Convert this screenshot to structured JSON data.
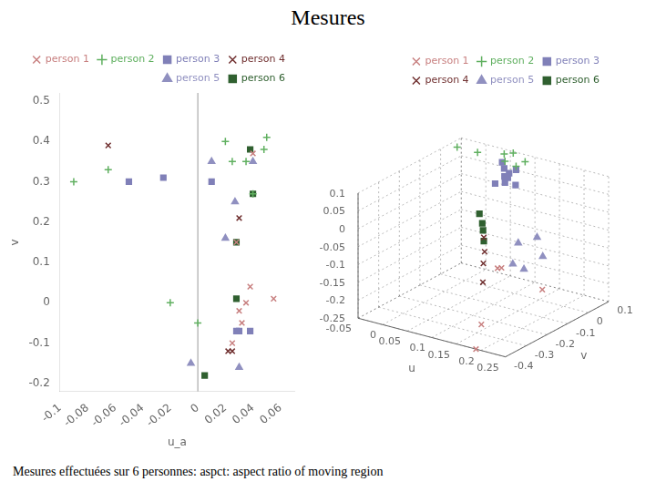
{
  "title": "Mesures",
  "subtitle": "Mesures effectuées sur 6 personnes: aspct: aspect ratio of moving region",
  "chart_data": [
    {
      "type": "scatter",
      "x_label": "u_a",
      "y_label": "v",
      "xlim": [
        -0.1,
        0.07
      ],
      "xticks": [
        -0.1,
        -0.08,
        -0.06,
        -0.04,
        -0.02,
        0,
        0.02,
        0.04,
        0.06
      ],
      "ylim": [
        -0.22,
        0.52
      ],
      "yticks": [
        -0.2,
        -0.1,
        0,
        0.1,
        0.2,
        0.3,
        0.4,
        0.5
      ],
      "vline": 0.0,
      "grid": false,
      "legend": "upper right",
      "series": [
        {
          "name": "person 1",
          "color": "#c88080",
          "marker": "x",
          "x": [
            0.055,
            0.032,
            0.035,
            0.04,
            0.038,
            0.025,
            0.028,
            0.03
          ],
          "y": [
            0.01,
            -0.05,
            0.0,
            0.37,
            0.04,
            -0.1,
            0.15,
            -0.02
          ]
        },
        {
          "name": "person 2",
          "color": "#60b060",
          "marker": "plus",
          "x": [
            -0.09,
            -0.065,
            0.02,
            0.04,
            -0.02,
            0.0,
            0.025,
            0.035,
            0.048,
            0.05
          ],
          "y": [
            0.3,
            0.33,
            0.4,
            0.27,
            0.0,
            -0.05,
            0.35,
            0.35,
            0.38,
            0.41
          ]
        },
        {
          "name": "person 3",
          "color": "#8080b8",
          "marker": "square",
          "x": [
            -0.05,
            -0.025,
            0.01,
            0.028,
            0.03,
            0.038
          ],
          "y": [
            0.3,
            0.31,
            0.3,
            -0.07,
            -0.07,
            -0.07
          ]
        },
        {
          "name": "person 4",
          "color": "#703030",
          "marker": "x",
          "x": [
            -0.065,
            0.022,
            0.025,
            0.03
          ],
          "y": [
            0.39,
            -0.12,
            -0.12,
            0.21
          ]
        },
        {
          "name": "person 5",
          "color": "#9090c0",
          "marker": "triangle",
          "x": [
            0.027,
            0.04,
            0.01,
            0.02,
            0.03,
            -0.005
          ],
          "y": [
            0.25,
            0.35,
            0.35,
            0.16,
            -0.16,
            -0.15
          ]
        },
        {
          "name": "person 6",
          "color": "#306030",
          "marker": "square",
          "x": [
            0.038,
            0.028,
            0.005,
            0.028,
            0.04
          ],
          "y": [
            0.38,
            0.01,
            -0.18,
            0.15,
            0.27
          ]
        }
      ]
    },
    {
      "type": "scatter3d",
      "x_label": "u",
      "y_label": "v",
      "xlim": [
        -0.05,
        0.25
      ],
      "xticks": [
        -0.05,
        0,
        0.05,
        0.1,
        0.15,
        0.2,
        0.25
      ],
      "ylim": [
        -0.4,
        0.1
      ],
      "yticks": [
        -0.4,
        -0.3,
        -0.2,
        -0.1,
        0,
        0.1
      ],
      "zlim": [
        -0.25,
        0.1
      ],
      "zticks": [
        -0.25,
        -0.2,
        -0.15,
        -0.1,
        -0.05,
        0,
        0.05,
        0.1
      ],
      "grid": true,
      "legend": "upper right",
      "series": [
        {
          "name": "person 1",
          "color": "#c88080",
          "marker": "x",
          "x": [
            0.15,
            0.2,
            0.18,
            0.22,
            0.19
          ],
          "y": [
            -0.2,
            -0.3,
            -0.35,
            -0.15,
            -0.4
          ],
          "z": [
            -0.1,
            -0.05,
            -0.2,
            -0.15,
            -0.25
          ]
        },
        {
          "name": "person 2",
          "color": "#60b060",
          "marker": "plus",
          "x": [
            -0.05,
            0.0,
            0.05,
            0.08,
            0.06,
            0.07,
            0.06
          ],
          "y": [
            0.08,
            0.06,
            0.07,
            0.1,
            0.05,
            0.08,
            0.09
          ],
          "z": [
            0.08,
            0.09,
            0.1,
            0.08,
            0.09,
            0.07,
            0.1
          ]
        },
        {
          "name": "person 3",
          "color": "#8080b8",
          "marker": "square",
          "x": [
            0.04,
            0.06,
            0.08,
            0.07,
            0.05,
            0.09,
            0.06,
            0.07,
            0.05
          ],
          "y": [
            0.05,
            0.07,
            0.0,
            0.08,
            0.06,
            0.03,
            0.05,
            0.04,
            0.07
          ],
          "z": [
            0.02,
            0.05,
            0.07,
            0.06,
            0.08,
            0.04,
            0.03,
            0.05,
            0.06
          ]
        },
        {
          "name": "person 4",
          "color": "#703030",
          "marker": "x",
          "x": [
            0.08,
            0.1,
            0.12,
            0.09
          ],
          "y": [
            -0.1,
            -0.15,
            -0.2,
            -0.12
          ],
          "z": [
            -0.07,
            -0.12,
            -0.15,
            -0.1
          ]
        },
        {
          "name": "person 5",
          "color": "#9090c0",
          "marker": "triangle",
          "x": [
            0.15,
            0.18,
            0.16,
            0.2,
            0.17
          ],
          "y": [
            -0.1,
            -0.08,
            -0.15,
            -0.1,
            -0.12
          ],
          "z": [
            -0.06,
            -0.04,
            -0.1,
            -0.08,
            -0.12
          ]
        },
        {
          "name": "person 6",
          "color": "#306030",
          "marker": "square",
          "x": [
            0.05,
            0.07,
            0.06,
            0.08
          ],
          "y": [
            -0.05,
            -0.08,
            -0.06,
            -0.1
          ],
          "z": [
            -0.03,
            -0.06,
            -0.05,
            -0.08
          ]
        }
      ]
    }
  ]
}
